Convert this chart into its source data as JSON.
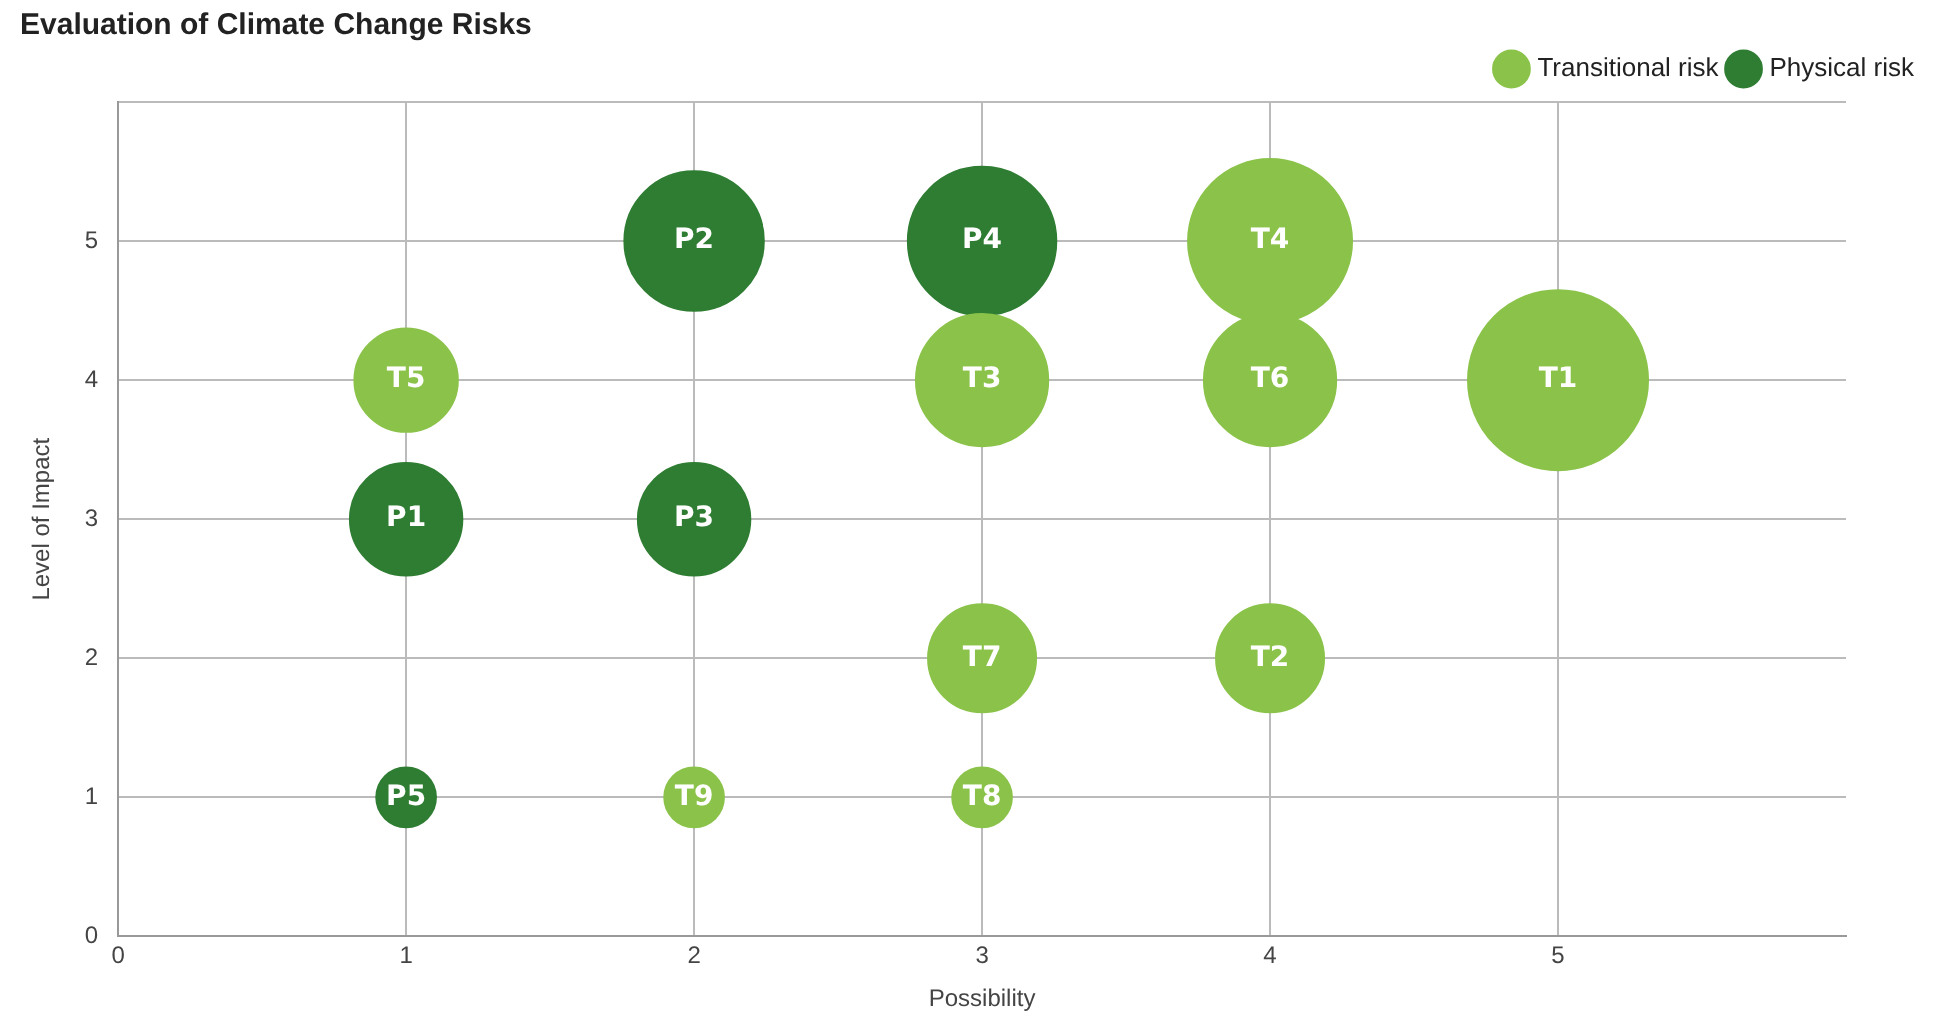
{
  "chart_data": {
    "type": "bubble",
    "title": "Evaluation of Climate Change Risks",
    "xlabel": "Possibility",
    "ylabel": "Level of Impact",
    "xlim": [
      0,
      6
    ],
    "xticks": [
      0,
      1,
      2,
      3,
      4,
      5
    ],
    "ylim": [
      0,
      6
    ],
    "yticks": [
      0,
      1,
      2,
      3,
      4,
      5,
      {
        "value": 6,
        "label": null
      }
    ],
    "grid": true,
    "legend": "top right",
    "series": [
      {
        "name": "Transitional risk",
        "color": "#8bc34a",
        "x": [
          5,
          4,
          3,
          4,
          1,
          4,
          3,
          3,
          2
        ],
        "values": [
          4,
          2,
          4,
          5,
          4,
          4,
          2,
          1,
          1
        ],
        "sizes": [
          1,
          0.36,
          0.54,
          0.83,
          0.33,
          0.54,
          0.36,
          0.11,
          0.11
        ],
        "value_labels": [
          "T1",
          "T2",
          "T3",
          "T4",
          "T5",
          "T6",
          "T7",
          "T8",
          "T9"
        ]
      },
      {
        "name": "Physical risk",
        "color": "#2e7d32",
        "x": [
          1,
          2,
          2,
          3,
          1
        ],
        "values": [
          3,
          5,
          3,
          5,
          1
        ],
        "sizes": [
          0.39,
          0.6,
          0.39,
          0.68,
          0.11
        ],
        "value_labels": [
          "P1",
          "P2",
          "P3",
          "P4",
          "P5"
        ]
      }
    ]
  }
}
